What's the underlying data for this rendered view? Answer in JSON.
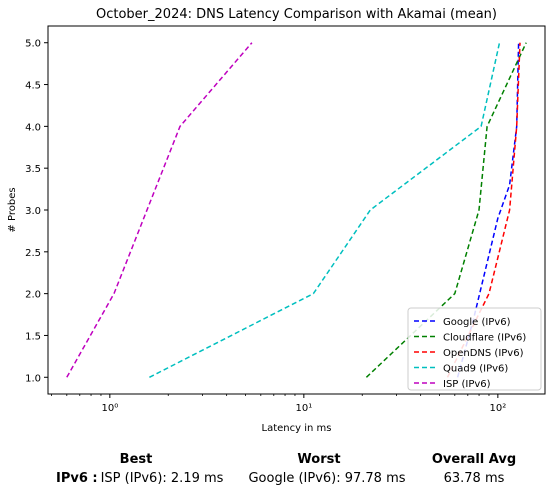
{
  "chart_data": {
    "type": "line",
    "title": "October_2024: DNS Latency Comparison with Akamai (mean)",
    "xlabel": "Latency in ms",
    "ylabel": "# Probes",
    "xscale": "log",
    "xlim": [
      0.48,
      175
    ],
    "ylim": [
      0.8,
      5.2
    ],
    "x_ticks": [
      1,
      10,
      100
    ],
    "x_tick_labels": [
      "10⁰",
      "10¹",
      "10²"
    ],
    "y_ticks": [
      1.0,
      1.5,
      2.0,
      2.5,
      3.0,
      3.5,
      4.0,
      4.5,
      5.0
    ],
    "y_tick_labels": [
      "1.0",
      "1.5",
      "2.0",
      "2.5",
      "3.0",
      "3.5",
      "4.0",
      "4.5",
      "5.0"
    ],
    "grid": false,
    "legend_position": "lower-right",
    "series": [
      {
        "name": "Google (IPv6)",
        "color": "#0000ff",
        "style": "dashed",
        "points": [
          [
            62,
            1.0
          ],
          [
            75,
            1.7
          ],
          [
            100,
            2.9
          ],
          [
            115,
            3.3
          ],
          [
            125,
            4.0
          ],
          [
            128,
            5.0
          ]
        ]
      },
      {
        "name": "Cloudflare (IPv6)",
        "color": "#008000",
        "style": "dashed",
        "points": [
          [
            21,
            1.0
          ],
          [
            60,
            2.0
          ],
          [
            80,
            3.0
          ],
          [
            88,
            4.0
          ],
          [
            140,
            5.0
          ]
        ]
      },
      {
        "name": "OpenDNS (IPv6)",
        "color": "#ff0000",
        "style": "dashed",
        "points": [
          [
            55,
            1.0
          ],
          [
            90,
            2.0
          ],
          [
            115,
            3.0
          ],
          [
            125,
            4.0
          ],
          [
            130,
            5.0
          ]
        ]
      },
      {
        "name": "Quad9 (IPv6)",
        "color": "#00bfbf",
        "style": "dashed",
        "points": [
          [
            1.6,
            1.0
          ],
          [
            11.2,
            2.0
          ],
          [
            22,
            3.0
          ],
          [
            82,
            4.0
          ],
          [
            102,
            5.0
          ]
        ]
      },
      {
        "name": "ISP (IPv6)",
        "color": "#bf00bf",
        "style": "dashed",
        "points": [
          [
            0.6,
            1.0
          ],
          [
            1.05,
            2.0
          ],
          [
            2.3,
            4.0
          ],
          [
            5.4,
            5.0
          ]
        ]
      }
    ]
  },
  "summary": {
    "headers": {
      "best": "Best",
      "worst": "Worst",
      "overall": "Overall Avg"
    },
    "row_label": "IPv6 :",
    "best": "ISP (IPv6): 2.19 ms",
    "worst": "Google (IPv6): 97.78 ms",
    "overall": "63.78 ms"
  }
}
